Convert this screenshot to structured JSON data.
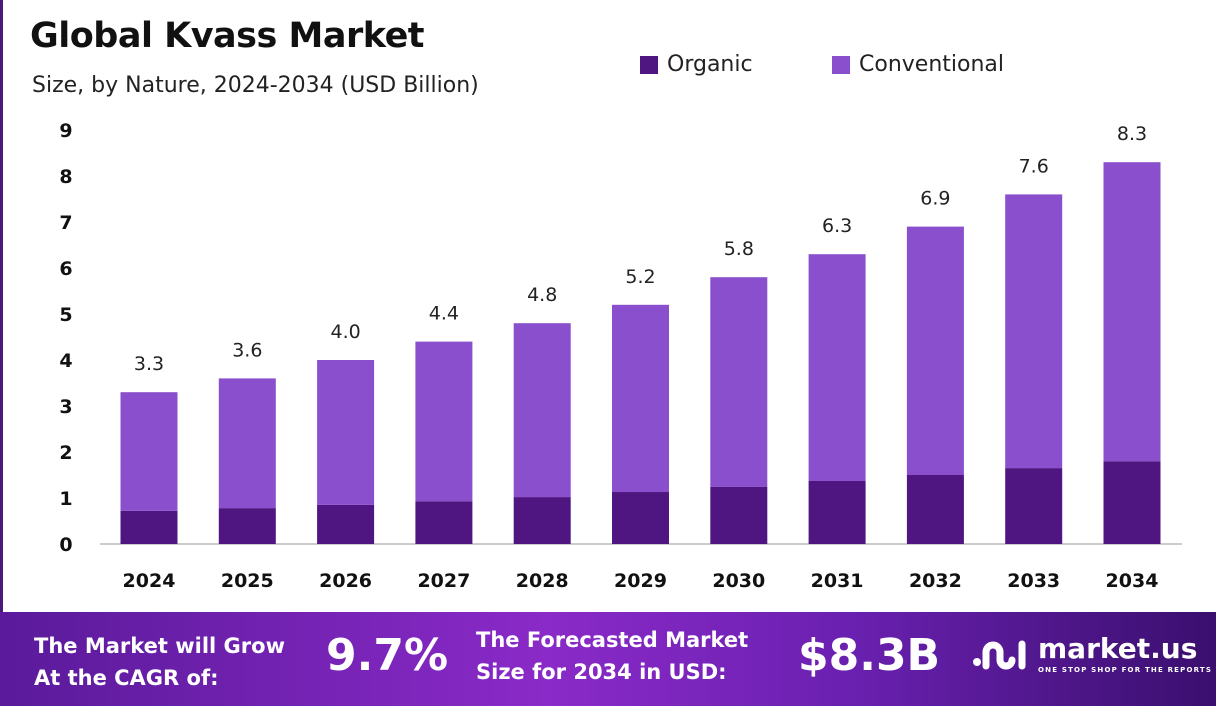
{
  "chart_data": {
    "type": "bar",
    "stacked": true,
    "title": "Global Kvass Market",
    "subtitle": "Size, by Nature, 2024-2034 (USD Billion)",
    "categories": [
      "2024",
      "2025",
      "2026",
      "2027",
      "2028",
      "2029",
      "2030",
      "2031",
      "2032",
      "2033",
      "2034"
    ],
    "series": [
      {
        "name": "Organic",
        "color": "#4f1580",
        "values": [
          0.72,
          0.78,
          0.85,
          0.93,
          1.02,
          1.13,
          1.24,
          1.37,
          1.5,
          1.65,
          1.8
        ]
      },
      {
        "name": "Conventional",
        "color": "#8a4fcc",
        "values": [
          2.58,
          2.82,
          3.15,
          3.47,
          3.78,
          4.07,
          4.56,
          4.93,
          5.4,
          5.95,
          6.5
        ]
      }
    ],
    "totals": [
      "3.3",
      "3.6",
      "4.0",
      "4.4",
      "4.8",
      "5.2",
      "5.8",
      "6.3",
      "6.9",
      "7.6",
      "8.3"
    ],
    "ylim": [
      0,
      9
    ],
    "yticks": [
      "0",
      "1",
      "2",
      "3",
      "4",
      "5",
      "6",
      "7",
      "8",
      "9"
    ],
    "grid": false,
    "legend": "top-right"
  },
  "footer": {
    "cagr_label_1": "The Market will Grow",
    "cagr_label_2": "At the CAGR of:",
    "cagr_value": "9.7%",
    "forecast_label_1": "The Forecasted Market",
    "forecast_label_2": "Size for 2034 in USD:",
    "forecast_value": "$8.3B",
    "logo_text": "market.us",
    "logo_tagline": "ONE STOP SHOP FOR THE REPORTS"
  }
}
